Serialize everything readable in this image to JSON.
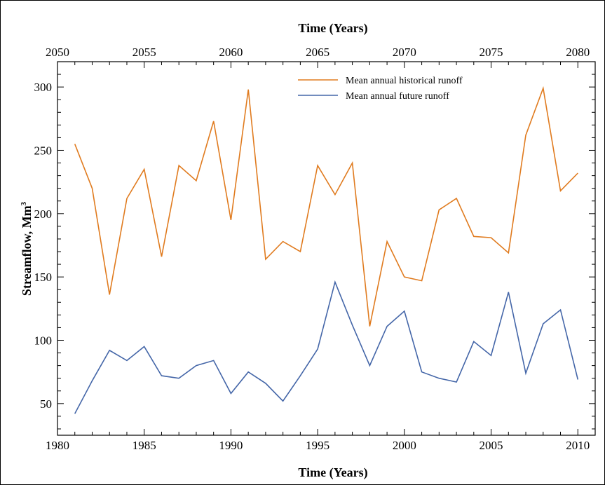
{
  "chart_data": {
    "type": "line",
    "title": "",
    "xlabel_bottom": "Time (Years)",
    "xlabel_top": "Time (Years)",
    "ylabel": "Streamflow, Mm",
    "ylabel_superscript": "3",
    "xlim_bottom": [
      1980,
      2011
    ],
    "xlim_top": [
      2050,
      2081
    ],
    "ylim": [
      25,
      320
    ],
    "xticks_bottom": [
      1980,
      1985,
      1990,
      1995,
      2000,
      2005,
      2010
    ],
    "xticks_top": [
      2050,
      2055,
      2060,
      2065,
      2070,
      2075,
      2080
    ],
    "yticks": [
      50,
      100,
      150,
      200,
      250,
      300
    ],
    "legend_position": "top-right",
    "x": [
      1981,
      1982,
      1983,
      1984,
      1985,
      1986,
      1987,
      1988,
      1989,
      1990,
      1991,
      1992,
      1993,
      1994,
      1995,
      1996,
      1997,
      1998,
      1999,
      2000,
      2001,
      2002,
      2003,
      2004,
      2005,
      2006,
      2007,
      2008,
      2009,
      2010
    ],
    "series": [
      {
        "name": "Mean annual historical runoff",
        "color": "#e07b1f",
        "values": [
          255,
          220,
          136,
          212,
          235,
          166,
          238,
          226,
          273,
          195,
          298,
          164,
          178,
          170,
          238,
          215,
          240,
          111,
          178,
          150,
          147,
          203,
          212,
          182,
          181,
          169,
          262,
          299,
          218,
          232
        ]
      },
      {
        "name": "Mean annual future runoff",
        "color": "#4466a8",
        "values": [
          42,
          68,
          92,
          84,
          95,
          72,
          70,
          80,
          84,
          58,
          75,
          66,
          52,
          72,
          93,
          146,
          112,
          80,
          111,
          123,
          75,
          70,
          67,
          99,
          88,
          138,
          74,
          113,
          124,
          69
        ]
      }
    ]
  }
}
